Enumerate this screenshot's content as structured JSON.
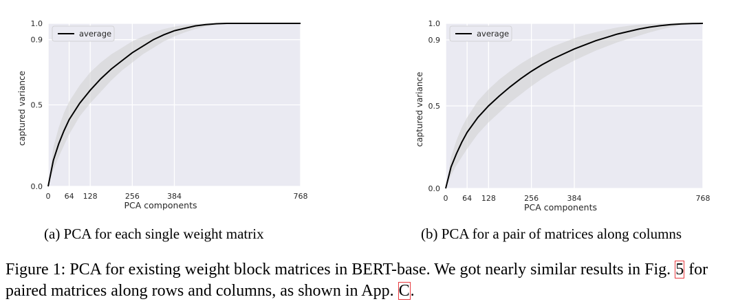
{
  "chart_data": [
    {
      "type": "line",
      "subcaption": "(a) PCA for each single weight matrix",
      "xlabel": "PCA components",
      "ylabel": "captured variance",
      "xlim": [
        0,
        768
      ],
      "ylim": [
        0,
        1.0
      ],
      "xticks": [
        0,
        64,
        128,
        256,
        384,
        768
      ],
      "yticks": [
        0.0,
        0.5,
        0.9,
        1.0
      ],
      "ytick_labels": [
        "0.0",
        "0.5",
        "0.9",
        "1.0"
      ],
      "grid": true,
      "legend": "top-left",
      "series": [
        {
          "name": "average",
          "color": "#000000",
          "x": [
            0,
            16,
            32,
            48,
            64,
            96,
            128,
            160,
            192,
            224,
            256,
            288,
            320,
            352,
            384,
            416,
            448,
            480,
            512,
            544,
            576,
            608,
            640,
            672,
            704,
            736,
            768
          ],
          "y": [
            0.0,
            0.16,
            0.26,
            0.34,
            0.41,
            0.51,
            0.59,
            0.66,
            0.72,
            0.77,
            0.82,
            0.86,
            0.9,
            0.93,
            0.955,
            0.97,
            0.985,
            0.993,
            0.998,
            1.0,
            1.0,
            1.0,
            1.0,
            1.0,
            1.0,
            1.0,
            1.0
          ]
        }
      ],
      "band": {
        "color": "#d0d0d0",
        "upper": [
          0.0,
          0.24,
          0.36,
          0.45,
          0.52,
          0.62,
          0.7,
          0.76,
          0.81,
          0.85,
          0.89,
          0.92,
          0.945,
          0.965,
          0.98,
          0.99,
          0.996,
          1.0,
          1.0,
          1.0,
          1.0,
          1.0,
          1.0,
          1.0,
          1.0,
          1.0,
          1.0
        ],
        "lower": [
          0.0,
          0.1,
          0.18,
          0.25,
          0.32,
          0.43,
          0.51,
          0.58,
          0.65,
          0.71,
          0.76,
          0.81,
          0.85,
          0.89,
          0.92,
          0.945,
          0.965,
          0.98,
          0.99,
          0.997,
          1.0,
          1.0,
          1.0,
          1.0,
          1.0,
          1.0,
          1.0
        ]
      }
    },
    {
      "type": "line",
      "subcaption": "(b) PCA for a pair of matrices along columns",
      "xlabel": "PCA components",
      "ylabel": "captured variance",
      "xlim": [
        0,
        768
      ],
      "ylim": [
        0,
        1.0
      ],
      "xticks": [
        0,
        64,
        128,
        256,
        384,
        768
      ],
      "yticks": [
        0.0,
        0.5,
        0.9,
        1.0
      ],
      "ytick_labels": [
        "0.0",
        "0.5",
        "0.9",
        "1.0"
      ],
      "grid": true,
      "legend": "top-left",
      "series": [
        {
          "name": "average",
          "color": "#000000",
          "x": [
            0,
            16,
            32,
            48,
            64,
            96,
            128,
            160,
            192,
            224,
            256,
            288,
            320,
            352,
            384,
            416,
            448,
            480,
            512,
            544,
            576,
            608,
            640,
            672,
            704,
            736,
            768
          ],
          "y": [
            0.0,
            0.13,
            0.21,
            0.28,
            0.34,
            0.43,
            0.5,
            0.56,
            0.615,
            0.665,
            0.71,
            0.75,
            0.785,
            0.815,
            0.845,
            0.87,
            0.895,
            0.915,
            0.935,
            0.95,
            0.965,
            0.977,
            0.986,
            0.993,
            0.997,
            0.999,
            1.0
          ]
        }
      ],
      "band": {
        "color": "#d0d0d0",
        "upper": [
          0.0,
          0.19,
          0.29,
          0.37,
          0.43,
          0.53,
          0.6,
          0.66,
          0.71,
          0.755,
          0.795,
          0.83,
          0.86,
          0.885,
          0.91,
          0.93,
          0.947,
          0.962,
          0.975,
          0.985,
          0.992,
          0.996,
          0.999,
          1.0,
          1.0,
          1.0,
          1.0
        ],
        "lower": [
          0.0,
          0.08,
          0.14,
          0.19,
          0.24,
          0.33,
          0.4,
          0.46,
          0.52,
          0.57,
          0.62,
          0.665,
          0.705,
          0.74,
          0.775,
          0.805,
          0.835,
          0.86,
          0.885,
          0.905,
          0.925,
          0.945,
          0.962,
          0.977,
          0.988,
          0.996,
          1.0
        ]
      }
    }
  ],
  "caption": {
    "text_before": "Figure 1: PCA for existing weight block matrices in BERT-base. We got nearly similar results in Fig. ",
    "ref_figure": "5",
    "text_middle": " for paired matrices along rows and columns, as shown in App. ",
    "ref_appendix": "C",
    "text_after": "."
  }
}
